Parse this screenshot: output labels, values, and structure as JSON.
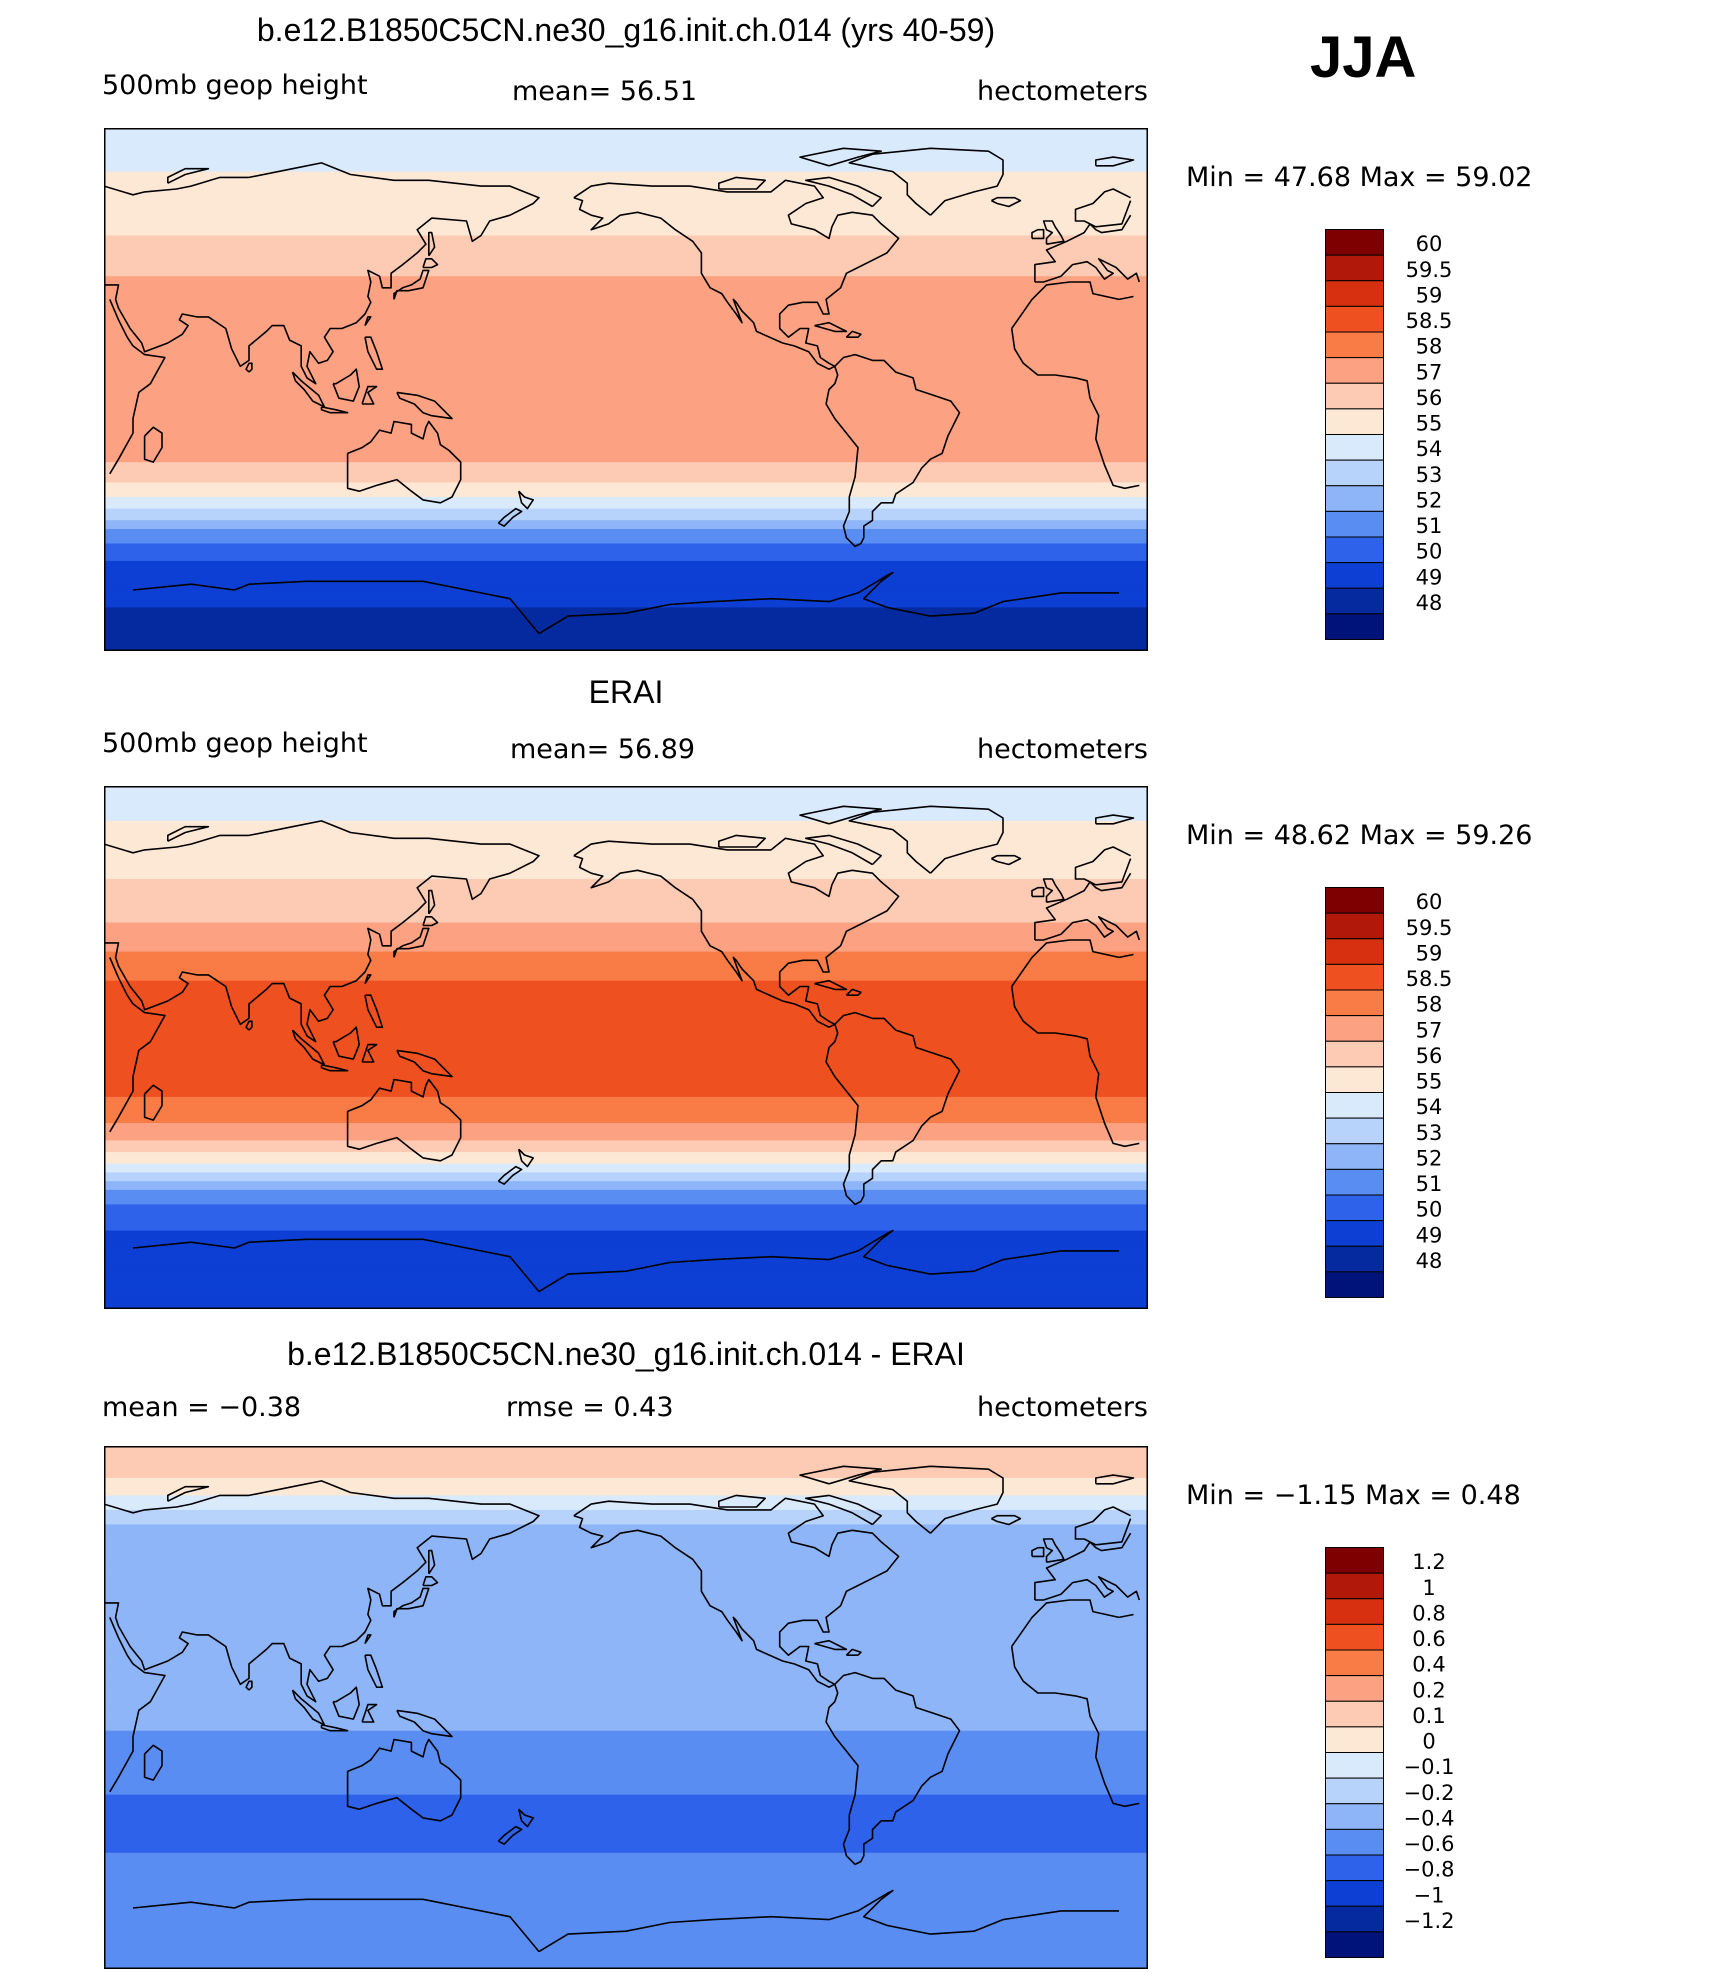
{
  "season": "JJA",
  "panels": [
    {
      "title": "b.e12.B1850C5CN.ne30_g16.init.ch.014 (yrs 40-59)",
      "left_label": "500mb  geop  height",
      "center_label": "mean=   56.51",
      "right_label": "hectometers",
      "minmax": "Min  =    47.68  Max  =    59.02"
    },
    {
      "title": "ERAI",
      "left_label": "500mb  geop  height",
      "center_label": "mean=   56.89",
      "right_label": "hectometers",
      "minmax": "Min  =    48.62  Max  =    59.26"
    },
    {
      "title": "b.e12.B1850C5CN.ne30_g16.init.ch.014 - ERAI",
      "left_label": "mean  =    −0.38",
      "center_label": "rmse  =     0.43",
      "right_label": "hectometers",
      "minmax": "Min  =    −1.15  Max  =     0.48"
    }
  ],
  "chart_data": [
    {
      "type": "heatmap",
      "title": "b.e12.B1850C5CN.ne30_g16.init.ch.014 (yrs 40-59)",
      "variable": "500mb geop height",
      "units": "hectometers",
      "mean": 56.51,
      "min": 47.68,
      "max": 59.02,
      "colorbar_levels": [
        "60",
        "59.5",
        "59",
        "58.5",
        "58",
        "57",
        "56",
        "55",
        "54",
        "53",
        "52",
        "51",
        "50",
        "49",
        "48"
      ],
      "colors": [
        "#7f0000",
        "#b2180a",
        "#d73010",
        "#ef5020",
        "#f97b45",
        "#fca282",
        "#fdcab3",
        "#fde8d6",
        "#d9eafc",
        "#b7d3fb",
        "#8eb5f8",
        "#5a8df2",
        "#2e62ea",
        "#0d3fd4",
        "#052aa0",
        "#00137a"
      ],
      "zonal_profile": [
        [
          90,
          54.3
        ],
        [
          75,
          55.0
        ],
        [
          60,
          55.6
        ],
        [
          45,
          56.4
        ],
        [
          30,
          57.8
        ],
        [
          15,
          58.0
        ],
        [
          0,
          57.7
        ],
        [
          -15,
          57.5
        ],
        [
          -25,
          57.0
        ],
        [
          -30,
          56.3
        ],
        [
          -35,
          55.4
        ],
        [
          -40,
          54.3
        ],
        [
          -45,
          52.9
        ],
        [
          -50,
          51.6
        ],
        [
          -55,
          50.5
        ],
        [
          -60,
          49.8
        ],
        [
          -70,
          49.3
        ],
        [
          -80,
          48.7
        ],
        [
          -90,
          48.4
        ]
      ]
    },
    {
      "type": "heatmap",
      "title": "ERAI",
      "variable": "500mb geop height",
      "units": "hectometers",
      "mean": 56.89,
      "min": 48.62,
      "max": 59.26,
      "colorbar_levels": [
        "60",
        "59.5",
        "59",
        "58.5",
        "58",
        "57",
        "56",
        "55",
        "54",
        "53",
        "52",
        "51",
        "50",
        "49",
        "48"
      ],
      "colors": [
        "#7f0000",
        "#b2180a",
        "#d73010",
        "#ef5020",
        "#f97b45",
        "#fca282",
        "#fdcab3",
        "#fde8d6",
        "#d9eafc",
        "#b7d3fb",
        "#8eb5f8",
        "#5a8df2",
        "#2e62ea",
        "#0d3fd4",
        "#052aa0",
        "#00137a"
      ],
      "zonal_profile": [
        [
          90,
          54.3
        ],
        [
          75,
          55.2
        ],
        [
          60,
          55.9
        ],
        [
          45,
          56.8
        ],
        [
          30,
          58.3
        ],
        [
          15,
          58.7
        ],
        [
          0,
          58.6
        ],
        [
          -15,
          58.6
        ],
        [
          -25,
          58.1
        ],
        [
          -30,
          57.4
        ],
        [
          -35,
          56.3
        ],
        [
          -40,
          54.9
        ],
        [
          -45,
          53.3
        ],
        [
          -50,
          51.8
        ],
        [
          -55,
          50.7
        ],
        [
          -60,
          50.1
        ],
        [
          -70,
          49.7
        ],
        [
          -80,
          49.3
        ],
        [
          -90,
          49.0
        ]
      ]
    },
    {
      "type": "heatmap",
      "title": "b.e12.B1850C5CN.ne30_g16.init.ch.014 - ERAI",
      "units": "hectometers",
      "mean": -0.38,
      "rmse": 0.43,
      "min": -1.15,
      "max": 0.48,
      "colorbar_levels": [
        "1.2",
        "1",
        "0.8",
        "0.6",
        "0.4",
        "0.2",
        "0.1",
        "0",
        "−0.1",
        "−0.2",
        "−0.4",
        "−0.6",
        "−0.8",
        "−1",
        "−1.2"
      ],
      "colors": [
        "#7f0000",
        "#b2180a",
        "#d73010",
        "#ef5020",
        "#f97b45",
        "#fca282",
        "#fdcab3",
        "#fde8d6",
        "#d9eafc",
        "#b7d3fb",
        "#8eb5f8",
        "#5a8df2",
        "#2e62ea",
        "#0d3fd4",
        "#052aa0",
        "#00137a"
      ],
      "zonal_profile": [
        [
          90,
          0.15
        ],
        [
          80,
          0.12
        ],
        [
          72,
          -0.02
        ],
        [
          60,
          -0.25
        ],
        [
          45,
          -0.36
        ],
        [
          30,
          -0.22
        ],
        [
          15,
          -0.3
        ],
        [
          0,
          -0.38
        ],
        [
          -15,
          -0.42
        ],
        [
          -25,
          -0.55
        ],
        [
          -30,
          -0.6
        ],
        [
          -40,
          -0.7
        ],
        [
          -50,
          -0.6
        ],
        [
          -60,
          -0.5
        ],
        [
          -75,
          -0.45
        ],
        [
          -90,
          -0.42
        ]
      ]
    }
  ]
}
